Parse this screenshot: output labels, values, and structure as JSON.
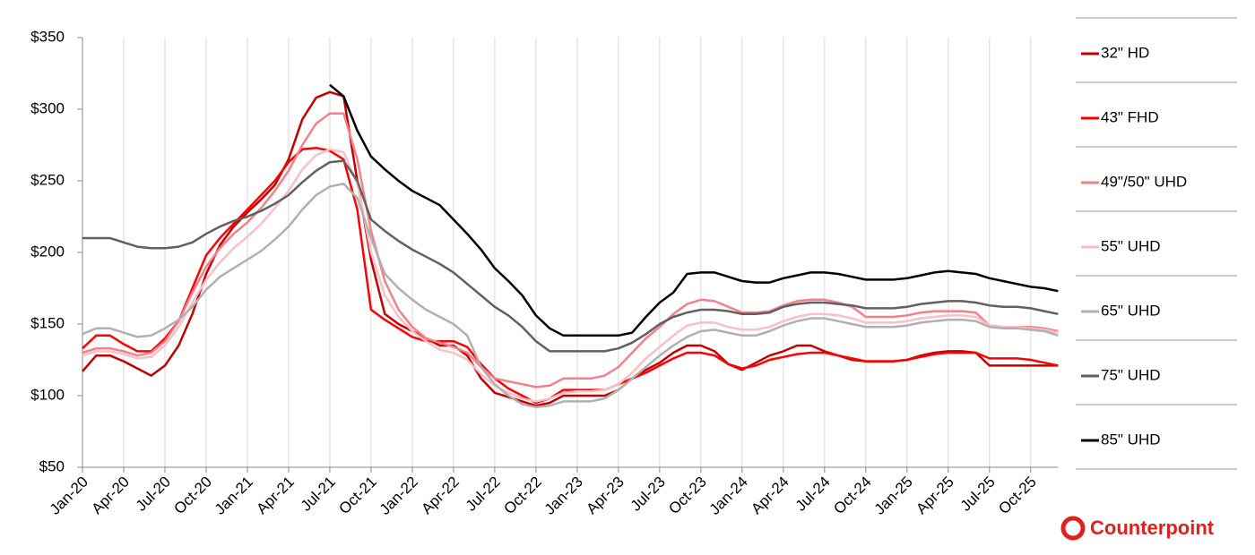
{
  "chart_data": {
    "type": "line",
    "categories": [
      "Jan-20",
      null,
      null,
      "Apr-20",
      null,
      null,
      "Jul-20",
      null,
      null,
      "Oct-20",
      null,
      null,
      "Jan-21",
      null,
      null,
      "Apr-21",
      null,
      null,
      "Jul-21",
      null,
      null,
      "Oct-21",
      null,
      null,
      "Jan-22",
      null,
      null,
      "Apr-22",
      null,
      null,
      "Jul-22",
      null,
      null,
      "Oct-22",
      null,
      null,
      "Jan-23",
      null,
      null,
      "Apr-23",
      null,
      null,
      "Jul-23",
      null,
      null,
      "Oct-23",
      null,
      null,
      "Jan-24",
      null,
      null,
      "Apr-24",
      null,
      null,
      "Jul-24",
      null,
      null,
      "Oct-24",
      null,
      null,
      "Jan-25",
      null,
      null,
      "Apr-25",
      null,
      null,
      "Jul-25",
      null,
      null,
      "Oct-25",
      null,
      null
    ],
    "ylim": [
      50,
      350
    ],
    "yticks": [
      {
        "value": 50,
        "label": "$50"
      },
      {
        "value": 100,
        "label": "$100"
      },
      {
        "value": 150,
        "label": "$150"
      },
      {
        "value": 200,
        "label": "$200"
      },
      {
        "value": 250,
        "label": "$250"
      },
      {
        "value": 300,
        "label": "$300"
      },
      {
        "value": 350,
        "label": "$350"
      }
    ],
    "grid": "x",
    "legend": "right",
    "brand": "Counterpoint",
    "series": [
      {
        "name": "32\" HD",
        "color": "#c00000",
        "values": [
          117,
          128,
          128,
          124,
          119,
          114,
          121,
          135,
          157,
          185,
          205,
          218,
          228,
          237,
          247,
          265,
          293,
          308,
          312,
          309,
          250,
          195,
          157,
          150,
          145,
          140,
          135,
          135,
          128,
          112,
          102,
          99,
          96,
          93,
          95,
          100,
          100,
          100,
          100,
          104,
          112,
          118,
          123,
          130,
          135,
          135,
          131,
          122,
          118,
          123,
          128,
          131,
          135,
          135,
          131,
          128,
          125,
          124,
          124,
          124,
          125,
          128,
          130,
          131,
          131,
          130,
          121,
          121,
          121,
          121,
          121,
          121
        ]
      },
      {
        "name": "43\" FHD",
        "color": "#ff0000",
        "values": [
          133,
          142,
          142,
          136,
          131,
          131,
          140,
          152,
          175,
          198,
          210,
          220,
          230,
          240,
          250,
          263,
          272,
          273,
          271,
          265,
          230,
          160,
          153,
          147,
          141,
          138,
          138,
          138,
          134,
          122,
          112,
          105,
          100,
          95,
          98,
          104,
          104,
          104,
          104,
          108,
          112,
          116,
          121,
          126,
          130,
          130,
          128,
          122,
          119,
          121,
          125,
          127,
          129,
          130,
          130,
          128,
          126,
          124,
          124,
          124,
          125,
          127,
          129,
          130,
          130,
          130,
          126,
          126,
          126,
          125,
          123,
          121
        ]
      },
      {
        "name": "49\"/50\" UHD",
        "color": "#f4808a",
        "values": [
          130,
          133,
          133,
          131,
          128,
          130,
          138,
          152,
          172,
          190,
          203,
          213,
          221,
          231,
          243,
          257,
          275,
          290,
          297,
          297,
          265,
          215,
          180,
          160,
          148,
          140,
          137,
          134,
          130,
          120,
          112,
          110,
          108,
          106,
          107,
          112,
          112,
          112,
          114,
          120,
          130,
          140,
          148,
          157,
          164,
          167,
          166,
          162,
          158,
          158,
          159,
          163,
          166,
          167,
          167,
          165,
          162,
          155,
          155,
          155,
          156,
          158,
          159,
          159,
          159,
          158,
          149,
          148,
          148,
          148,
          147,
          145
        ]
      },
      {
        "name": "55\" UHD",
        "color": "#f9c0c8",
        "values": [
          128,
          131,
          131,
          129,
          126,
          127,
          135,
          148,
          165,
          181,
          193,
          203,
          211,
          220,
          231,
          243,
          258,
          268,
          272,
          270,
          248,
          200,
          170,
          155,
          145,
          138,
          132,
          130,
          125,
          115,
          107,
          102,
          98,
          96,
          98,
          102,
          103,
          103,
          104,
          108,
          116,
          126,
          134,
          142,
          149,
          151,
          151,
          148,
          146,
          146,
          148,
          152,
          155,
          157,
          157,
          156,
          154,
          151,
          151,
          151,
          152,
          154,
          155,
          156,
          156,
          155,
          149,
          148,
          148,
          147,
          146,
          144
        ]
      },
      {
        "name": "65\" UHD",
        "color": "#b0b0b0",
        "values": [
          143,
          147,
          147,
          144,
          141,
          142,
          147,
          153,
          162,
          174,
          183,
          189,
          195,
          201,
          209,
          218,
          230,
          240,
          246,
          248,
          238,
          210,
          185,
          175,
          167,
          160,
          155,
          150,
          142,
          120,
          108,
          100,
          94,
          92,
          93,
          96,
          96,
          96,
          98,
          104,
          112,
          120,
          128,
          135,
          141,
          145,
          146,
          144,
          142,
          142,
          145,
          149,
          152,
          154,
          154,
          152,
          150,
          148,
          148,
          148,
          149,
          151,
          152,
          153,
          153,
          152,
          148,
          147,
          147,
          146,
          145,
          142
        ]
      },
      {
        "name": "75\" UHD",
        "color": "#606060",
        "values": [
          210,
          210,
          210,
          207,
          204,
          203,
          203,
          204,
          207,
          213,
          218,
          222,
          225,
          229,
          234,
          240,
          249,
          257,
          263,
          264,
          250,
          223,
          215,
          208,
          202,
          197,
          192,
          186,
          178,
          170,
          162,
          156,
          148,
          138,
          131,
          131,
          131,
          131,
          131,
          133,
          137,
          143,
          150,
          155,
          158,
          160,
          160,
          159,
          157,
          157,
          158,
          162,
          164,
          165,
          165,
          164,
          163,
          161,
          161,
          161,
          162,
          164,
          165,
          166,
          166,
          165,
          163,
          162,
          162,
          161,
          159,
          157
        ]
      },
      {
        "name": "85\" UHD",
        "color": "#000000",
        "values": [
          null,
          null,
          null,
          null,
          null,
          null,
          null,
          null,
          null,
          null,
          null,
          null,
          null,
          null,
          null,
          null,
          null,
          null,
          317,
          309,
          285,
          267,
          258,
          250,
          243,
          238,
          233,
          223,
          213,
          202,
          189,
          180,
          170,
          156,
          147,
          142,
          142,
          142,
          142,
          142,
          144,
          155,
          165,
          172,
          185,
          186,
          186,
          183,
          180,
          179,
          179,
          182,
          184,
          186,
          186,
          185,
          183,
          181,
          181,
          181,
          182,
          184,
          186,
          187,
          186,
          185,
          182,
          180,
          178,
          176,
          175,
          173
        ]
      }
    ]
  }
}
